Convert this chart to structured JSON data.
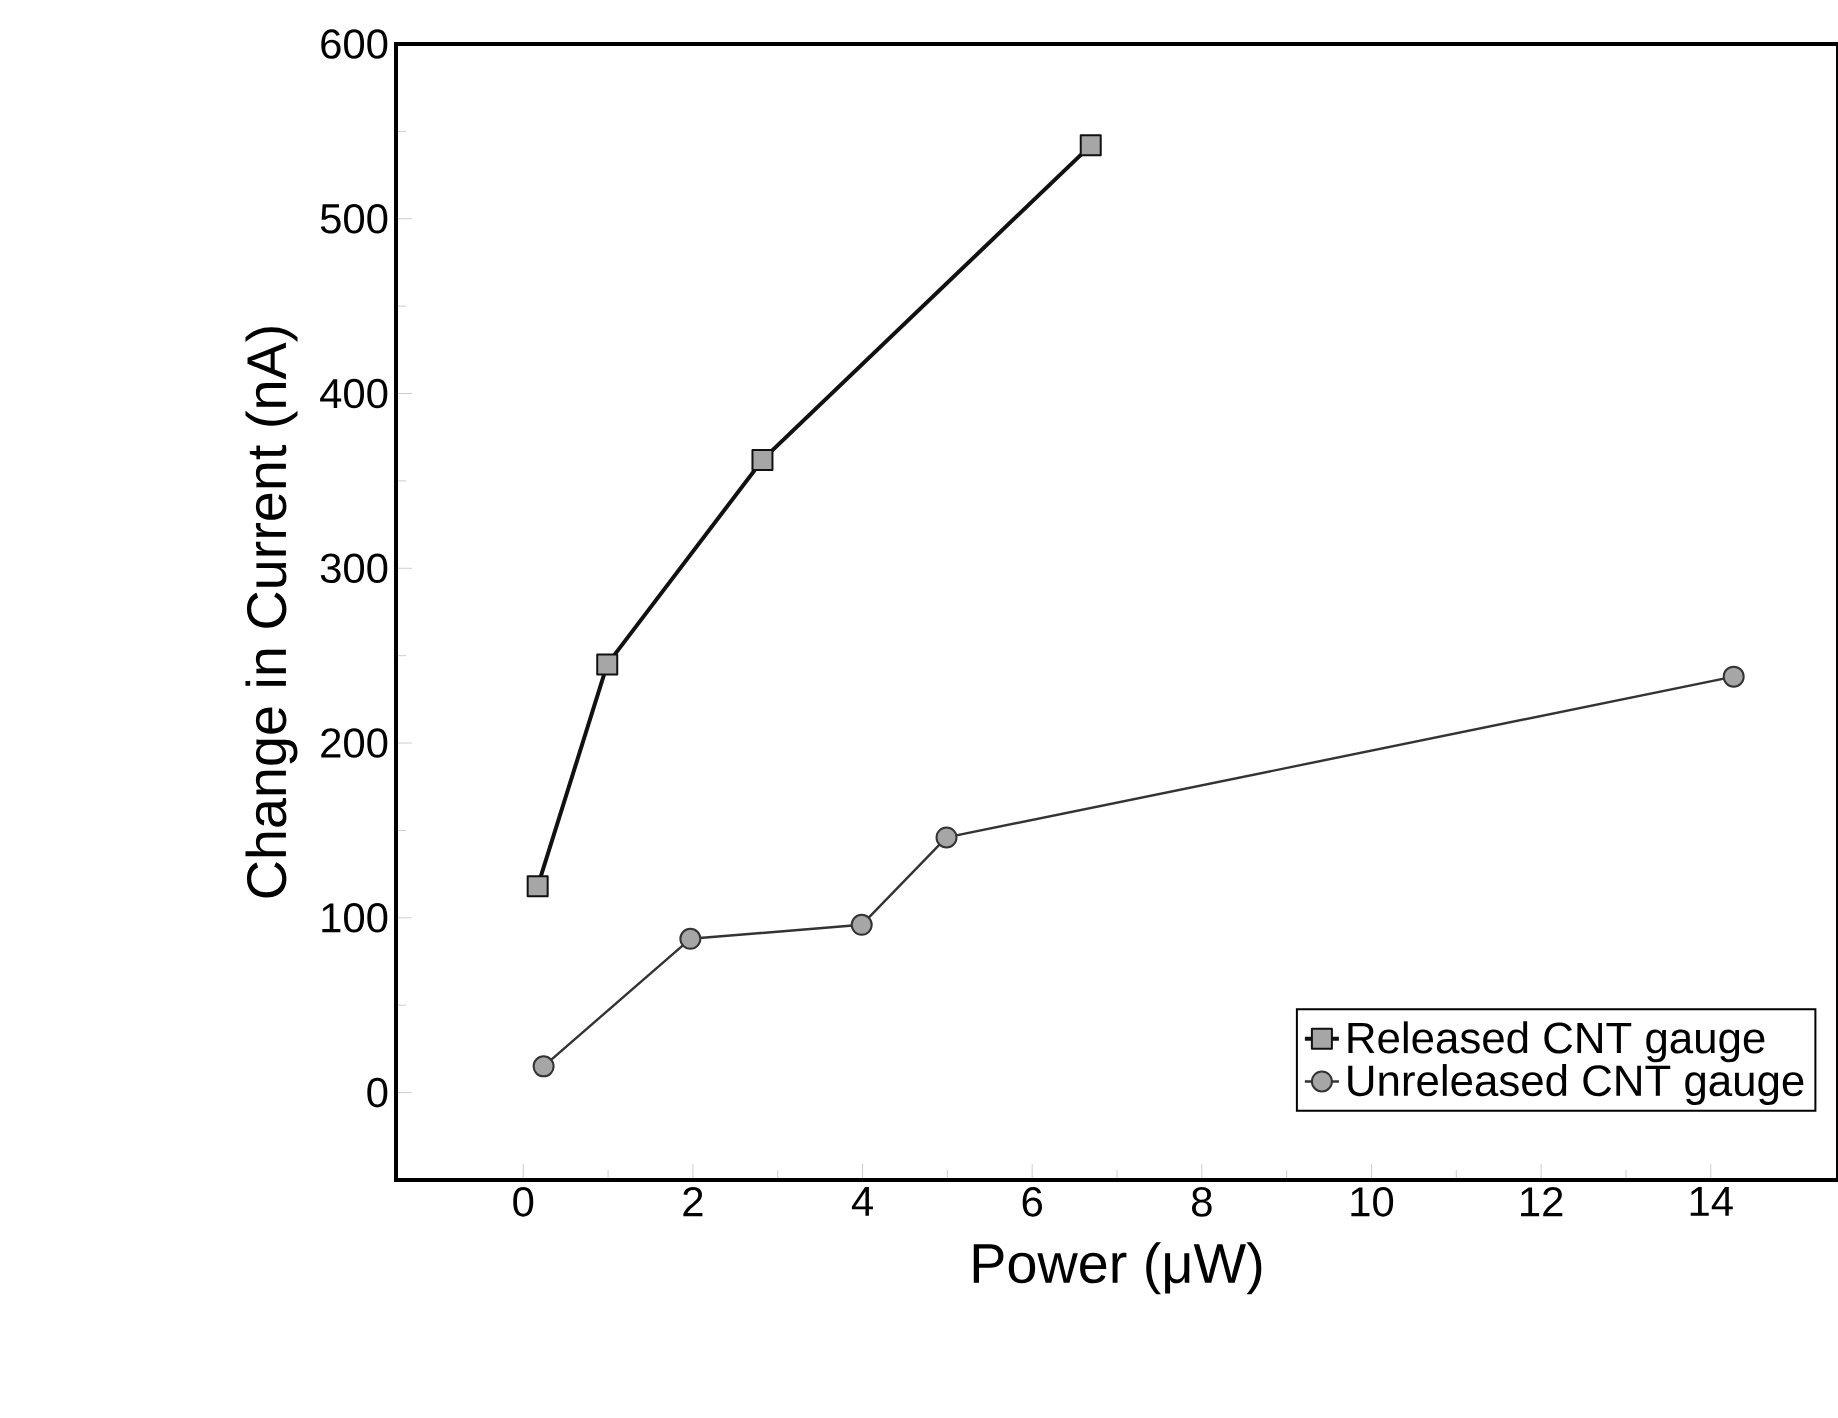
{
  "chart_data": {
    "type": "line",
    "xlabel": "Power (μW)",
    "ylabel": "Change in Current (nA)",
    "xlim": [
      -1.5,
      15.5
    ],
    "xticks": [
      0,
      2,
      4,
      6,
      8,
      10,
      12,
      14
    ],
    "ylim": [
      -50,
      600
    ],
    "yticks": [
      0,
      100,
      200,
      300,
      400,
      500,
      600
    ],
    "legend": "bottom right",
    "grid": false,
    "series": [
      {
        "name": "Released CNT gauge",
        "color": "#111111",
        "marker": "square",
        "x": [
          0.17,
          0.99,
          2.82,
          6.69
        ],
        "values": [
          118,
          245,
          362,
          542
        ]
      },
      {
        "name": "Unreleased CNT gauge",
        "color": "#333333",
        "marker": "circle",
        "x": [
          0.24,
          1.97,
          3.99,
          4.99,
          14.27
        ],
        "values": [
          15,
          88,
          96,
          146,
          238
        ]
      }
    ]
  }
}
